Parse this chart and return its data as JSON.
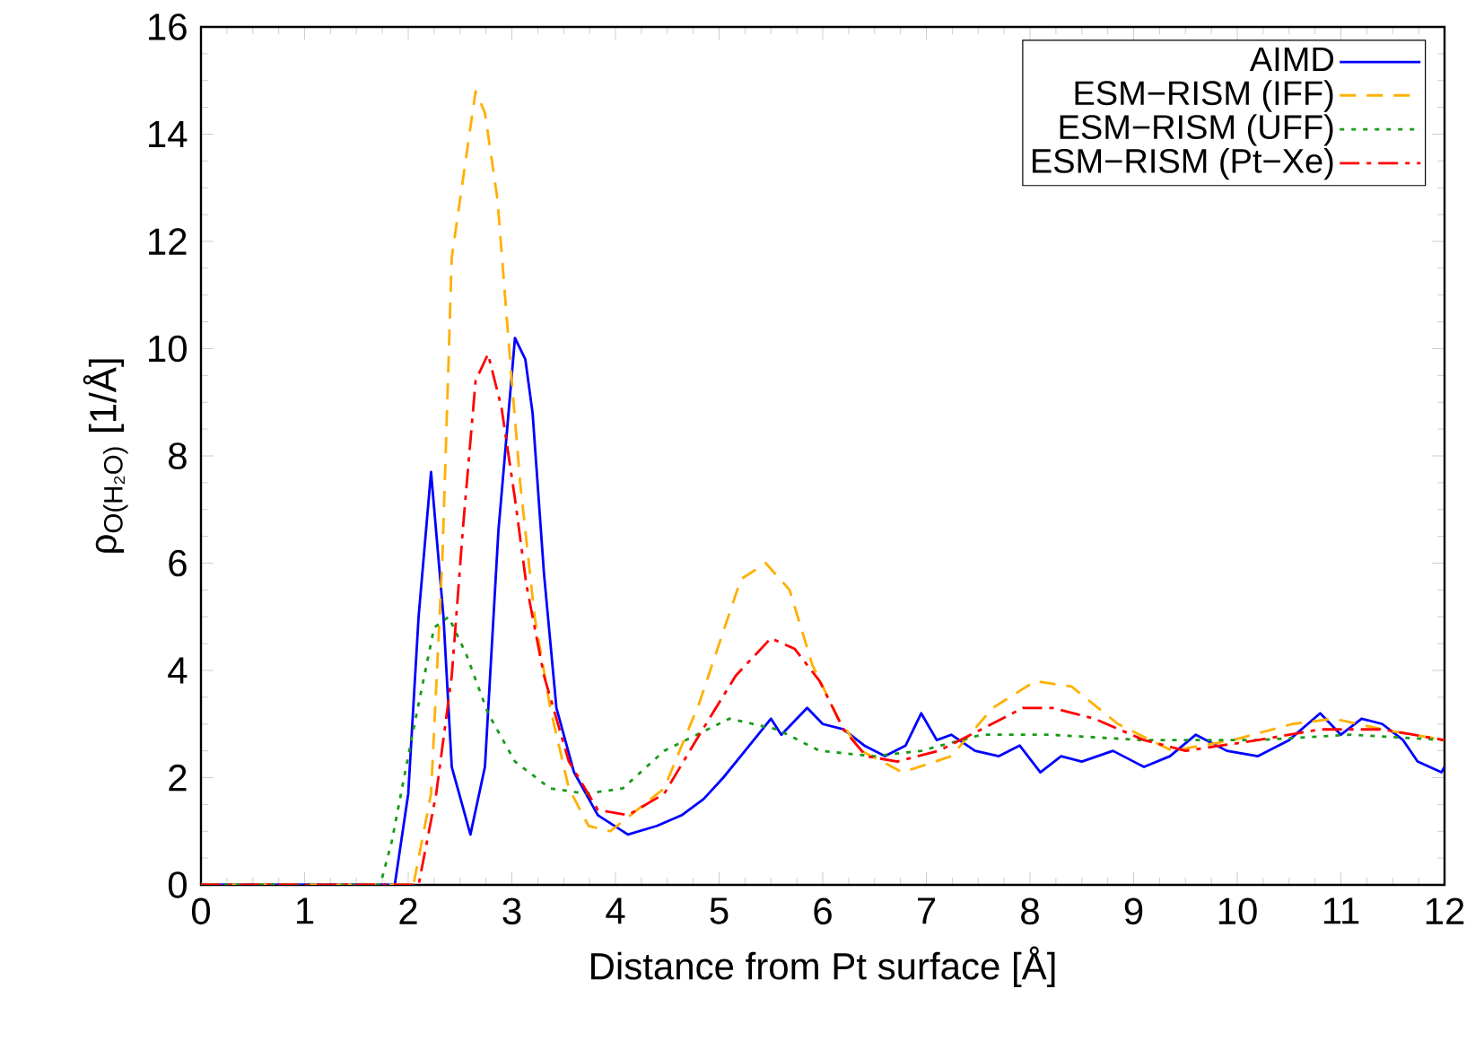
{
  "chart_data": {
    "type": "line",
    "xlabel": "Distance from Pt surface [Å]",
    "ylabel": "ρ$_{O(H₂O)}$ [1/Å]",
    "xlim": [
      0,
      12
    ],
    "ylim": [
      0,
      16
    ],
    "xticks": [
      0,
      1,
      2,
      3,
      4,
      5,
      6,
      7,
      8,
      9,
      10,
      11,
      12
    ],
    "yticks": [
      0,
      2,
      4,
      6,
      8,
      10,
      12,
      14,
      16
    ],
    "legend": "top right",
    "series": [
      {
        "name": "AIMD",
        "color": "#0000ff",
        "line_style": "solid",
        "x": [
          0,
          1.87,
          2.0,
          2.1,
          2.22,
          2.34,
          2.42,
          2.6,
          2.74,
          2.87,
          3.03,
          3.13,
          3.2,
          3.31,
          3.43,
          3.6,
          3.83,
          4.12,
          4.4,
          4.64,
          4.85,
          5.04,
          5.25,
          5.5,
          5.6,
          5.85,
          6.0,
          6.2,
          6.4,
          6.6,
          6.8,
          6.95,
          7.1,
          7.24,
          7.47,
          7.7,
          7.9,
          8.1,
          8.3,
          8.5,
          8.8,
          9.1,
          9.35,
          9.6,
          9.9,
          10.2,
          10.5,
          10.8,
          11.0,
          11.2,
          11.4,
          11.6,
          11.74,
          11.97,
          12
        ],
        "values": [
          0,
          0,
          1.7,
          5.0,
          7.7,
          5.0,
          2.2,
          0.94,
          2.2,
          6.6,
          10.2,
          9.8,
          8.8,
          5.8,
          3.3,
          2.1,
          1.3,
          0.94,
          1.1,
          1.3,
          1.6,
          2.0,
          2.5,
          3.1,
          2.8,
          3.3,
          3.0,
          2.9,
          2.6,
          2.4,
          2.6,
          3.2,
          2.7,
          2.8,
          2.5,
          2.4,
          2.6,
          2.1,
          2.4,
          2.3,
          2.5,
          2.2,
          2.4,
          2.8,
          2.5,
          2.4,
          2.7,
          3.2,
          2.8,
          3.1,
          3.0,
          2.7,
          2.3,
          2.1,
          2.2
        ]
      },
      {
        "name": "ESM−RISM (IFF)",
        "color": "#ffb000",
        "line_style": "dashed",
        "x": [
          0,
          2.05,
          2.22,
          2.33,
          2.42,
          2.65,
          2.74,
          2.86,
          2.97,
          3.08,
          3.22,
          3.37,
          3.55,
          3.74,
          3.95,
          4.47,
          4.81,
          5.21,
          5.45,
          5.68,
          5.9,
          6.15,
          6.37,
          6.77,
          7.24,
          7.64,
          8.05,
          8.4,
          8.85,
          9.37,
          9.96,
          10.53,
          10.93,
          11.4,
          12
        ],
        "values": [
          0,
          0,
          1.7,
          6.1,
          11.7,
          14.8,
          14.4,
          12.8,
          10.1,
          7.5,
          5.0,
          3.3,
          1.8,
          1.1,
          1.0,
          1.8,
          3.4,
          5.7,
          6.0,
          5.5,
          4.1,
          3.1,
          2.5,
          2.1,
          2.4,
          3.3,
          3.8,
          3.7,
          3.0,
          2.5,
          2.7,
          3.0,
          3.1,
          2.9,
          2.7
        ]
      },
      {
        "name": "ESM−RISM (UFF)",
        "color": "#1a9a1a",
        "line_style": "dotted",
        "x": [
          0,
          1.73,
          1.84,
          2.04,
          2.25,
          2.39,
          2.56,
          2.77,
          3.03,
          3.37,
          3.72,
          4.07,
          4.47,
          5.1,
          5.56,
          5.97,
          6.49,
          6.95,
          7.53,
          8.2,
          9.1,
          10.2,
          11.1,
          12
        ],
        "values": [
          0,
          0,
          0.8,
          2.8,
          4.8,
          5.0,
          4.3,
          3.2,
          2.3,
          1.8,
          1.7,
          1.8,
          2.5,
          3.1,
          2.9,
          2.5,
          2.4,
          2.5,
          2.8,
          2.8,
          2.7,
          2.7,
          2.8,
          2.7
        ]
      },
      {
        "name": "ESM−RISM (Pt−Xe)",
        "color": "#ff0000",
        "line_style": "dashdot",
        "x": [
          0,
          2.1,
          2.27,
          2.42,
          2.53,
          2.65,
          2.77,
          2.9,
          3.03,
          3.14,
          3.31,
          3.55,
          3.83,
          4.12,
          4.47,
          4.81,
          5.16,
          5.5,
          5.73,
          5.97,
          6.2,
          6.42,
          6.72,
          7.12,
          7.53,
          7.93,
          8.22,
          8.62,
          9.1,
          9.5,
          10.2,
          10.8,
          11.4,
          12
        ],
        "values": [
          0,
          0,
          1.7,
          3.9,
          6.7,
          9.4,
          9.9,
          8.9,
          7.2,
          5.6,
          3.9,
          2.3,
          1.4,
          1.3,
          1.7,
          2.8,
          3.9,
          4.6,
          4.4,
          3.8,
          2.9,
          2.4,
          2.3,
          2.5,
          2.9,
          3.3,
          3.3,
          3.1,
          2.7,
          2.5,
          2.7,
          2.9,
          2.9,
          2.7
        ]
      }
    ]
  }
}
